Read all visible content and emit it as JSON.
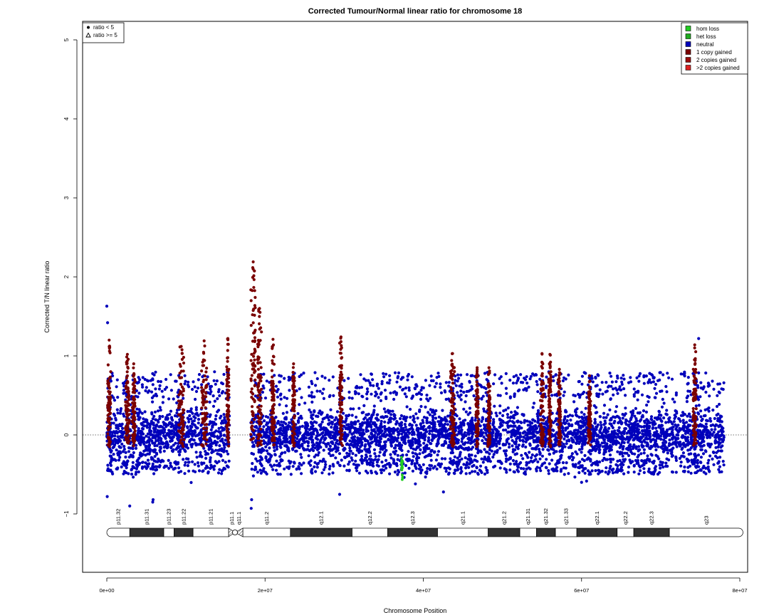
{
  "chart_data": {
    "type": "scatter",
    "title": "Corrected Tumour/Normal linear ratio for chromosome  18",
    "xlabel": "Chromosome Position",
    "ylabel": "Corrected T/N linear ratio",
    "xlim": [
      0,
      80000000
    ],
    "ylim": [
      -1.75,
      5.3
    ],
    "x_ticks": [
      {
        "value": 0,
        "label": "0e+00"
      },
      {
        "value": 20000000,
        "label": "2e+07"
      },
      {
        "value": 40000000,
        "label": "4e+07"
      },
      {
        "value": 60000000,
        "label": "6e+07"
      },
      {
        "value": 80000000,
        "label": "8e+07"
      }
    ],
    "y_ticks": [
      {
        "value": -1,
        "label": "−1"
      },
      {
        "value": 0,
        "label": "0"
      },
      {
        "value": 1,
        "label": "1"
      },
      {
        "value": 2,
        "label": "2"
      },
      {
        "value": 3,
        "label": "3"
      },
      {
        "value": 4,
        "label": "4"
      },
      {
        "value": 5,
        "label": "5"
      }
    ],
    "reference_line": 0,
    "colors": {
      "hom_loss": "#22cc22",
      "het_loss": "#1faa1f",
      "neutral": "#0000bb",
      "one_copy_gained": "#7a0000",
      "two_copies_gained": "#9a0c0c",
      "gt_two_copies_gained": "#dd2222"
    },
    "shape_legend": [
      {
        "symbol": "dot",
        "label": "ratio < 5"
      },
      {
        "symbol": "triangle",
        "label": "ratio >= 5"
      }
    ],
    "state_legend": [
      {
        "key": "hom_loss",
        "label": "hom loss"
      },
      {
        "key": "het_loss",
        "label": "het loss"
      },
      {
        "key": "neutral",
        "label": "neutral"
      },
      {
        "key": "one_copy_gained",
        "label": "1 copy gained"
      },
      {
        "key": "two_copies_gained",
        "label": "2 copies gained"
      },
      {
        "key": "gt_two_copies_gained",
        "label": ">2 copies gained"
      }
    ],
    "shape_legend_position": "top-left",
    "state_legend_position": "top-right",
    "neutral_segments": [
      {
        "start": 0,
        "end": 15500000,
        "mean": 0.0,
        "sd": 0.17
      },
      {
        "start": 18200000,
        "end": 78000000,
        "mean": 0.0,
        "sd": 0.16
      }
    ],
    "gain_regions": [
      {
        "center": 300000,
        "width": 400000,
        "peak": 1.2
      },
      {
        "center": 2600000,
        "width": 500000,
        "peak": 1.02
      },
      {
        "center": 3400000,
        "width": 400000,
        "peak": 0.9
      },
      {
        "center": 9400000,
        "width": 700000,
        "peak": 1.12
      },
      {
        "center": 12300000,
        "width": 700000,
        "peak": 1.19
      },
      {
        "center": 15300000,
        "width": 300000,
        "peak": 1.22
      },
      {
        "center": 18500000,
        "width": 600000,
        "peak": 2.19
      },
      {
        "center": 19300000,
        "width": 500000,
        "peak": 1.6
      },
      {
        "center": 21000000,
        "width": 400000,
        "peak": 1.21
      },
      {
        "center": 23600000,
        "width": 300000,
        "peak": 0.9
      },
      {
        "center": 29600000,
        "width": 400000,
        "peak": 1.24
      },
      {
        "center": 43700000,
        "width": 500000,
        "peak": 1.03
      },
      {
        "center": 46800000,
        "width": 300000,
        "peak": 0.85
      },
      {
        "center": 48300000,
        "width": 300000,
        "peak": 0.85
      },
      {
        "center": 55000000,
        "width": 400000,
        "peak": 1.03
      },
      {
        "center": 56000000,
        "width": 300000,
        "peak": 1.02
      },
      {
        "center": 57200000,
        "width": 300000,
        "peak": 0.83
      },
      {
        "center": 61000000,
        "width": 300000,
        "peak": 0.75
      },
      {
        "center": 74300000,
        "width": 400000,
        "peak": 1.14
      }
    ],
    "loss_regions": [
      {
        "center": 37300000,
        "width": 150000,
        "min": -0.57
      }
    ],
    "outliers": [
      {
        "x": 0,
        "y": 1.63
      },
      {
        "x": 100000,
        "y": 1.42
      },
      {
        "x": 50000,
        "y": -0.78
      },
      {
        "x": 2900000,
        "y": -0.9
      },
      {
        "x": 5800000,
        "y": -0.85
      },
      {
        "x": 5850000,
        "y": -0.82
      },
      {
        "x": 18300000,
        "y": -0.82
      },
      {
        "x": 18250000,
        "y": -0.93
      },
      {
        "x": 74800000,
        "y": 1.22
      },
      {
        "x": 39000000,
        "y": -0.62
      },
      {
        "x": 60000000,
        "y": -0.6
      }
    ],
    "ideogram": {
      "start": 0,
      "end": 80400000,
      "centromere": 16200000,
      "bands": [
        {
          "label": "p11.32",
          "start": 0,
          "end": 2900000,
          "stain": "light"
        },
        {
          "label": "p11.31",
          "start": 2900000,
          "end": 7200000,
          "stain": "dark"
        },
        {
          "label": "p11.23",
          "start": 7200000,
          "end": 8500000,
          "stain": "light"
        },
        {
          "label": "p11.22",
          "start": 8500000,
          "end": 10900000,
          "stain": "dark"
        },
        {
          "label": "p11.21",
          "start": 10900000,
          "end": 15400000,
          "stain": "light"
        },
        {
          "label": "p11.1",
          "start": 15400000,
          "end": 16200000,
          "stain": "hatched"
        },
        {
          "label": "q11.1",
          "start": 16200000,
          "end": 17200000,
          "stain": "hatched"
        },
        {
          "label": "q11.2",
          "start": 17200000,
          "end": 23200000,
          "stain": "light"
        },
        {
          "label": "q12.1",
          "start": 23200000,
          "end": 31000000,
          "stain": "dark"
        },
        {
          "label": "q12.2",
          "start": 31000000,
          "end": 35500000,
          "stain": "light"
        },
        {
          "label": "q12.3",
          "start": 35500000,
          "end": 41800000,
          "stain": "dark"
        },
        {
          "label": "q21.1",
          "start": 41800000,
          "end": 48200000,
          "stain": "light"
        },
        {
          "label": "q21.2",
          "start": 48200000,
          "end": 52200000,
          "stain": "dark"
        },
        {
          "label": "q21.31",
          "start": 52200000,
          "end": 54300000,
          "stain": "light"
        },
        {
          "label": "q21.32",
          "start": 54300000,
          "end": 56700000,
          "stain": "dark"
        },
        {
          "label": "q21.33",
          "start": 56700000,
          "end": 59400000,
          "stain": "light"
        },
        {
          "label": "q22.1",
          "start": 59400000,
          "end": 64500000,
          "stain": "dark"
        },
        {
          "label": "q22.2",
          "start": 64500000,
          "end": 66600000,
          "stain": "light"
        },
        {
          "label": "q22.3",
          "start": 66600000,
          "end": 71100000,
          "stain": "dark"
        },
        {
          "label": "q23",
          "start": 71100000,
          "end": 80400000,
          "stain": "light"
        }
      ]
    }
  }
}
